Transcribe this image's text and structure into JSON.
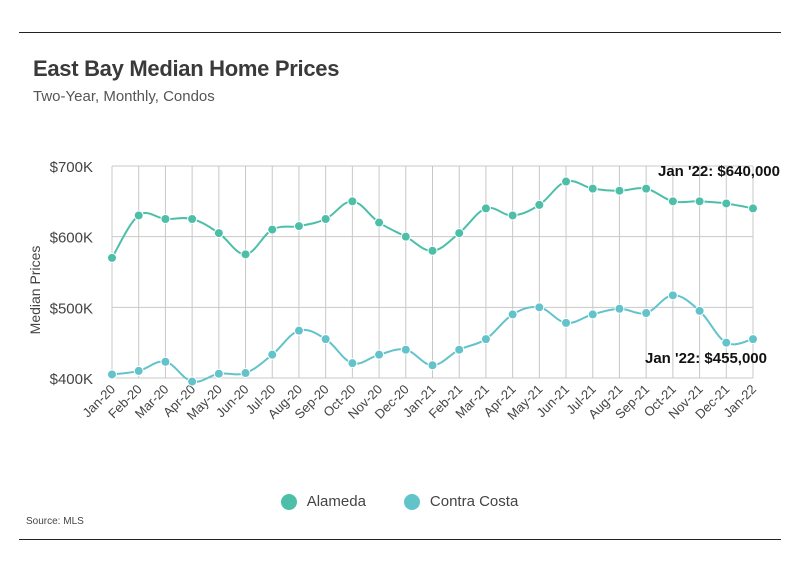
{
  "header": {
    "title": "East Bay Median Home Prices",
    "subtitle": "Two-Year, Monthly, Condos"
  },
  "footer": {
    "source": "Source:  MLS"
  },
  "colors": {
    "alameda": "#4dbfa8",
    "contra_costa": "#63c3cb",
    "grid": "#c8c8c8",
    "text": "#333333"
  },
  "chart_data": {
    "type": "line",
    "title": "East Bay Median Home Prices",
    "subtitle": "Two-Year, Monthly, Condos",
    "ylabel": "Median Prices",
    "xlabel": "",
    "ylim": [
      400000,
      700000
    ],
    "yticks": [
      400000,
      500000,
      600000,
      700000
    ],
    "ytick_labels": [
      "$400K",
      "$500K",
      "$600K",
      "$700K"
    ],
    "grid": true,
    "legend": "bottom-center",
    "categories": [
      "Jan-20",
      "Feb-20",
      "Mar-20",
      "Apr-20",
      "May-20",
      "Jun-20",
      "Jul-20",
      "Aug-20",
      "Sep-20",
      "Oct-20",
      "Nov-20",
      "Dec-20",
      "Jan-21",
      "Feb-21",
      "Mar-21",
      "Apr-21",
      "May-21",
      "Jun-21",
      "Jul-21",
      "Aug-21",
      "Sep-21",
      "Oct-21",
      "Nov-21",
      "Dec-21",
      "Jan-22"
    ],
    "series": [
      {
        "name": "Alameda",
        "color": "#4dbfa8",
        "values": [
          570000,
          630000,
          625000,
          625000,
          605000,
          575000,
          610000,
          615000,
          625000,
          650000,
          620000,
          600000,
          580000,
          605000,
          640000,
          630000,
          645000,
          678000,
          668000,
          665000,
          668000,
          650000,
          650000,
          647000,
          640000
        ]
      },
      {
        "name": "Contra Costa",
        "color": "#63c3cb",
        "values": [
          405000,
          410000,
          423000,
          395000,
          406000,
          407000,
          433000,
          467000,
          455000,
          421000,
          433000,
          440000,
          418000,
          440000,
          455000,
          490000,
          500000,
          478000,
          490000,
          498000,
          492000,
          517000,
          495000,
          450000,
          455000
        ]
      }
    ],
    "annotations": [
      {
        "series": "Alameda",
        "text": "Jan '22: $640,000"
      },
      {
        "series": "Contra Costa",
        "text": "Jan '22: $455,000"
      }
    ]
  }
}
